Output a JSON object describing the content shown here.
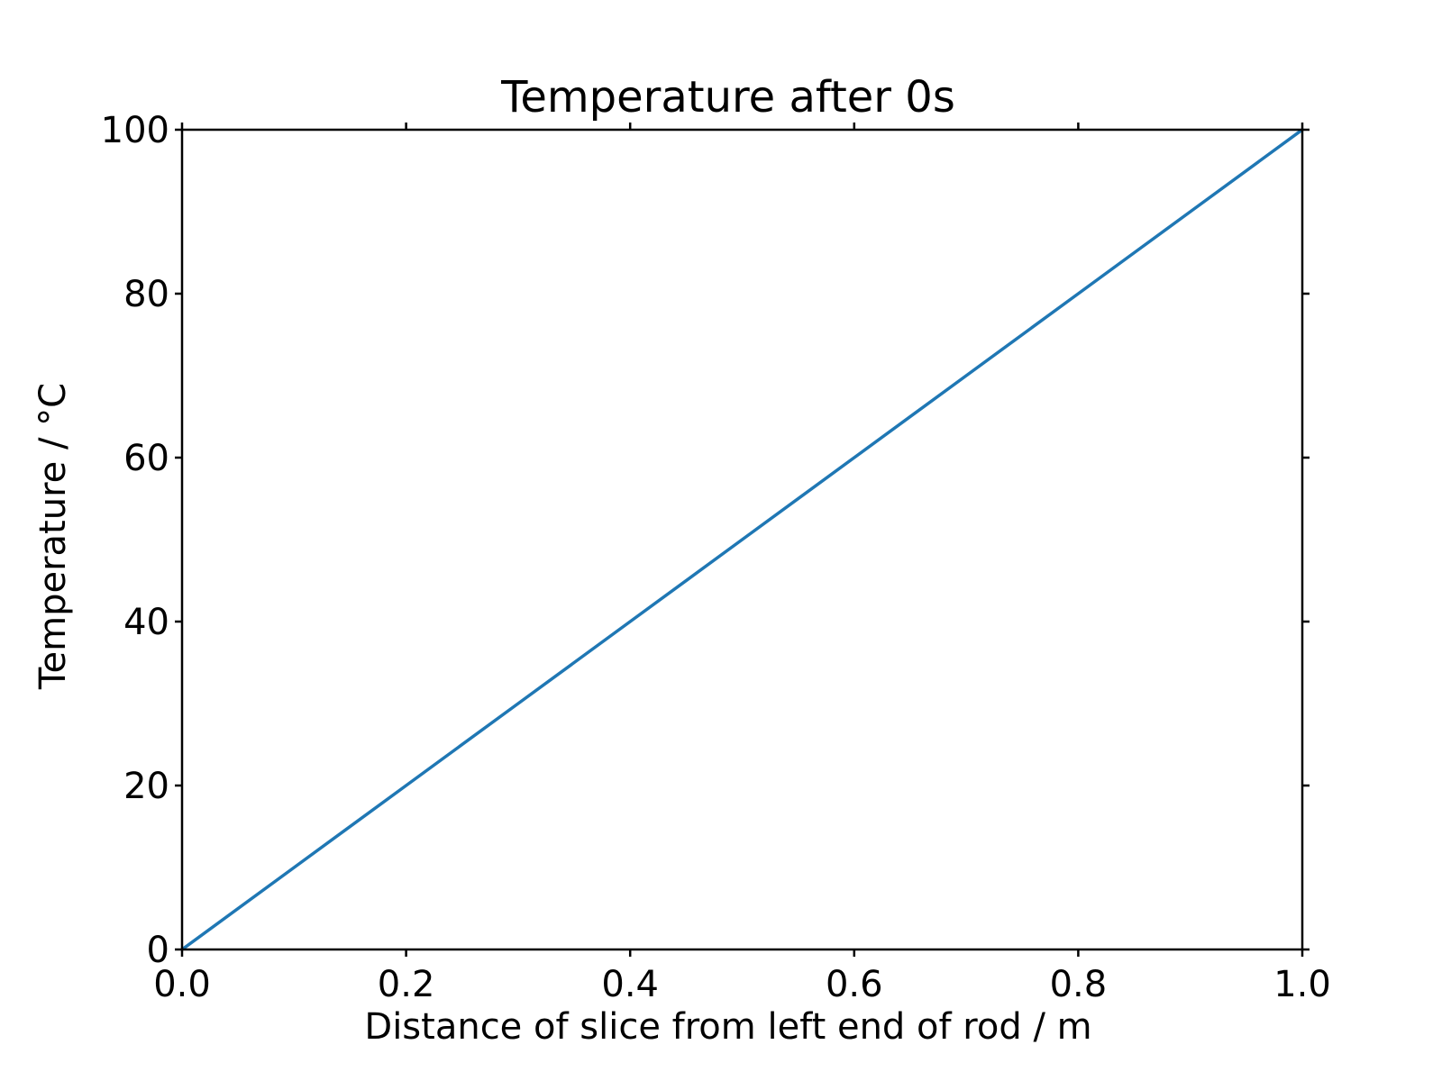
{
  "chart_data": {
    "type": "line",
    "title": "Temperature after 0s",
    "xlabel": "Distance of slice from left end of rod / m",
    "ylabel": "Temperature / °C",
    "xlim": [
      0.0,
      1.0
    ],
    "ylim": [
      0,
      100
    ],
    "xticks": [
      "0.0",
      "0.2",
      "0.4",
      "0.6",
      "0.8",
      "1.0"
    ],
    "yticks": [
      "0",
      "20",
      "40",
      "60",
      "80",
      "100"
    ],
    "grid": false,
    "series": [
      {
        "color": "#1f77b4",
        "x": [
          0.0,
          0.1,
          0.2,
          0.3,
          0.4,
          0.5,
          0.6,
          0.7,
          0.8,
          0.9,
          1.0
        ],
        "y": [
          0,
          10,
          20,
          30,
          40,
          50,
          60,
          70,
          80,
          90,
          100
        ]
      }
    ]
  }
}
